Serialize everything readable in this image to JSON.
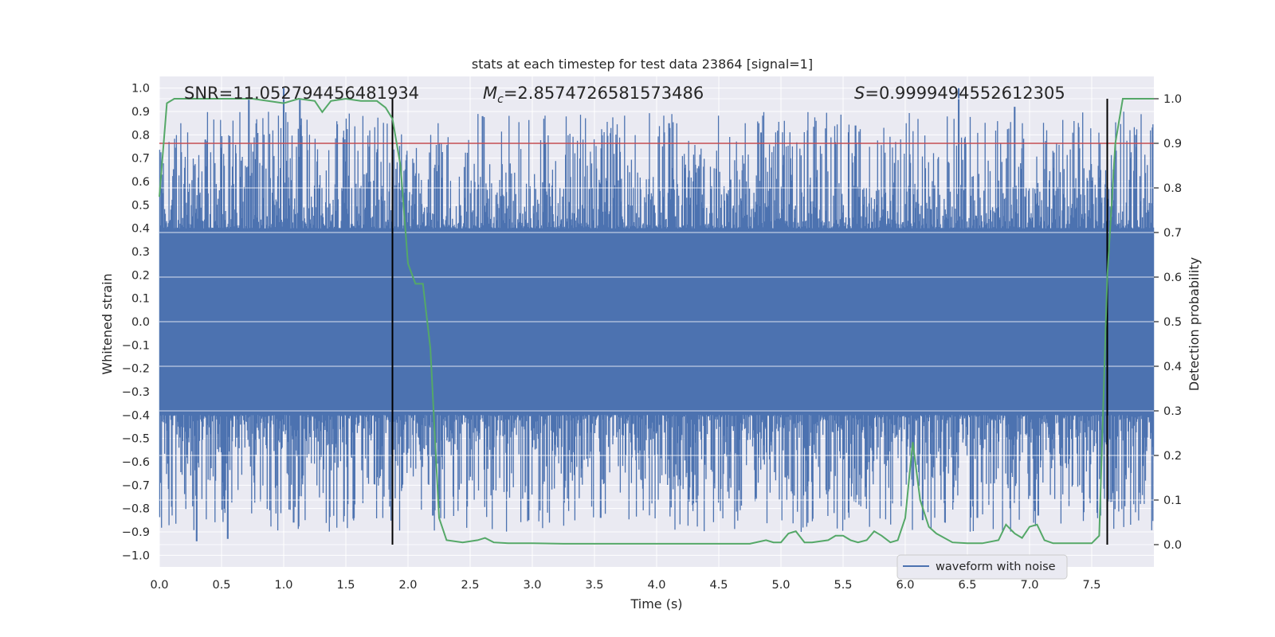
{
  "chart_data": {
    "type": "line",
    "title": "stats at each timestep for test data 23864 [signal=1]",
    "xlabel": "Time (s)",
    "ylabel": "Whitened strain",
    "y2label": "Detection probability",
    "xlim": [
      0,
      8
    ],
    "ylim": [
      -1.05,
      1.05
    ],
    "y2lim": [
      -0.05,
      1.05
    ],
    "xticks": [
      0.0,
      0.5,
      1.0,
      1.5,
      2.0,
      2.5,
      3.0,
      3.5,
      4.0,
      4.5,
      5.0,
      5.5,
      6.0,
      6.5,
      7.0,
      7.5
    ],
    "xtick_labels": [
      "0.0",
      "0.5",
      "1.0",
      "1.5",
      "2.0",
      "2.5",
      "3.0",
      "3.5",
      "4.0",
      "4.5",
      "5.0",
      "5.5",
      "6.0",
      "6.5",
      "7.0",
      "7.5"
    ],
    "yticks": [
      -1.0,
      -0.9,
      -0.8,
      -0.7,
      -0.6,
      -0.5,
      -0.4,
      -0.3,
      -0.2,
      -0.1,
      0.0,
      0.1,
      0.2,
      0.3,
      0.4,
      0.5,
      0.6,
      0.7,
      0.8,
      0.9,
      1.0
    ],
    "ytick_labels": [
      "−1.0",
      "−0.9",
      "−0.8",
      "−0.7",
      "−0.6",
      "−0.5",
      "−0.4",
      "−0.3",
      "−0.2",
      "−0.1",
      "0.0",
      "0.1",
      "0.2",
      "0.3",
      "0.4",
      "0.5",
      "0.6",
      "0.7",
      "0.8",
      "0.9",
      "1.0"
    ],
    "y2ticks": [
      0.0,
      0.1,
      0.2,
      0.3,
      0.4,
      0.5,
      0.6,
      0.7,
      0.8,
      0.9,
      1.0
    ],
    "y2tick_labels": [
      "0.0",
      "0.1",
      "0.2",
      "0.3",
      "0.4",
      "0.5",
      "0.6",
      "0.7",
      "0.8",
      "0.9",
      "1.0"
    ],
    "annotations": {
      "snr": "SNR=11.052794456481934",
      "mc_symbol": "M",
      "mc_sub": "c",
      "mc_value": "=2.8574726581573486",
      "s_symbol": "S",
      "s_value": "=0.9999494552612305"
    },
    "legend": {
      "label": "waveform with noise",
      "placement": "lower-right"
    },
    "threshold": {
      "value": 0.9,
      "axis": "right",
      "color": "#c44e52"
    },
    "vertical_markers": [
      1.875,
      7.625
    ],
    "waveform": {
      "name": "waveform with noise",
      "color": "#4c72b0",
      "samples": 1600,
      "band": 0.4,
      "peaks": [
        [
          0.72,
          0.95
        ],
        [
          1.0,
          1.0
        ],
        [
          1.13,
          0.95
        ],
        [
          2.6,
          0.88
        ],
        [
          4.1,
          0.85
        ],
        [
          5.6,
          0.84
        ],
        [
          6.43,
          1.0
        ],
        [
          6.88,
          0.92
        ],
        [
          4.84,
          0.81
        ],
        [
          0.37,
          0.78
        ]
      ],
      "troughs": [
        [
          0.3,
          -0.94
        ],
        [
          0.55,
          -0.93
        ],
        [
          1.08,
          -0.86
        ],
        [
          2.2,
          -0.83
        ],
        [
          2.97,
          -0.85
        ],
        [
          3.55,
          -0.84
        ],
        [
          6.14,
          -0.85
        ],
        [
          6.58,
          -0.84
        ],
        [
          7.07,
          -0.83
        ]
      ]
    },
    "series": [
      {
        "name": "detection probability",
        "color": "#55a868",
        "x": [
          0.0,
          0.06,
          0.12,
          0.25,
          0.5,
          0.75,
          1.0,
          1.06,
          1.12,
          1.25,
          1.31,
          1.38,
          1.5,
          1.62,
          1.75,
          1.82,
          1.875,
          1.94,
          2.0,
          2.06,
          2.12,
          2.18,
          2.25,
          2.31,
          2.44,
          2.56,
          2.62,
          2.69,
          2.81,
          3.0,
          3.25,
          3.5,
          4.0,
          4.25,
          4.5,
          4.75,
          4.88,
          4.94,
          5.0,
          5.06,
          5.12,
          5.19,
          5.25,
          5.38,
          5.44,
          5.5,
          5.56,
          5.62,
          5.69,
          5.75,
          5.81,
          5.88,
          5.94,
          6.0,
          6.06,
          6.12,
          6.19,
          6.25,
          6.38,
          6.5,
          6.62,
          6.75,
          6.81,
          6.88,
          6.94,
          7.0,
          7.06,
          7.12,
          7.19,
          7.31,
          7.44,
          7.5,
          7.56,
          7.625,
          7.69,
          7.75,
          7.81,
          8.0
        ],
        "values": [
          0.78,
          0.99,
          1.0,
          1.0,
          1.0,
          1.0,
          0.99,
          0.995,
          1.0,
          0.995,
          0.97,
          0.995,
          1.0,
          0.995,
          0.995,
          0.98,
          0.955,
          0.85,
          0.63,
          0.585,
          0.585,
          0.44,
          0.06,
          0.01,
          0.005,
          0.01,
          0.015,
          0.005,
          0.003,
          0.003,
          0.002,
          0.002,
          0.002,
          0.002,
          0.002,
          0.002,
          0.01,
          0.005,
          0.005,
          0.025,
          0.03,
          0.005,
          0.005,
          0.01,
          0.02,
          0.02,
          0.01,
          0.005,
          0.01,
          0.03,
          0.02,
          0.005,
          0.01,
          0.06,
          0.23,
          0.1,
          0.04,
          0.025,
          0.005,
          0.003,
          0.003,
          0.01,
          0.045,
          0.025,
          0.015,
          0.04,
          0.045,
          0.01,
          0.003,
          0.003,
          0.003,
          0.003,
          0.02,
          0.6,
          0.9,
          1.0,
          1.0,
          1.0
        ]
      }
    ]
  }
}
